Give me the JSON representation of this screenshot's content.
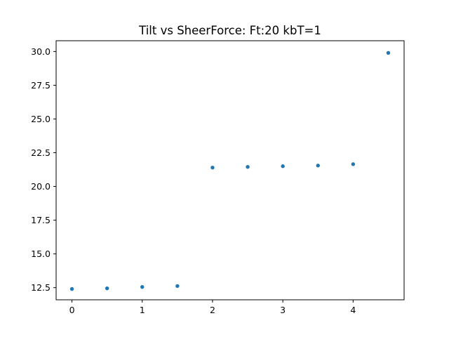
{
  "chart_data": {
    "type": "scatter",
    "title": "Tilt vs SheerForce: Ft:20 kbT=1",
    "xlabel": "",
    "ylabel": "",
    "xlim": [
      -0.225,
      4.725
    ],
    "ylim": [
      11.6,
      30.8
    ],
    "xticks": [
      0,
      1,
      2,
      3,
      4
    ],
    "xtick_labels": [
      "0",
      "1",
      "2",
      "3",
      "4"
    ],
    "yticks": [
      12.5,
      15.0,
      17.5,
      20.0,
      22.5,
      25.0,
      27.5,
      30.0
    ],
    "ytick_labels": [
      "12.5",
      "15.0",
      "17.5",
      "20.0",
      "22.5",
      "25.0",
      "27.5",
      "30.0"
    ],
    "grid": false,
    "legend": "none",
    "marker_color": "#1f77b4",
    "series": [
      {
        "x": [
          0,
          0.5,
          1.0,
          1.5,
          2.0,
          2.5,
          3.0,
          3.5,
          4.0,
          4.5
        ],
        "y": [
          12.4,
          12.45,
          12.55,
          12.62,
          21.4,
          21.45,
          21.5,
          21.55,
          21.65,
          29.9
        ]
      }
    ]
  }
}
